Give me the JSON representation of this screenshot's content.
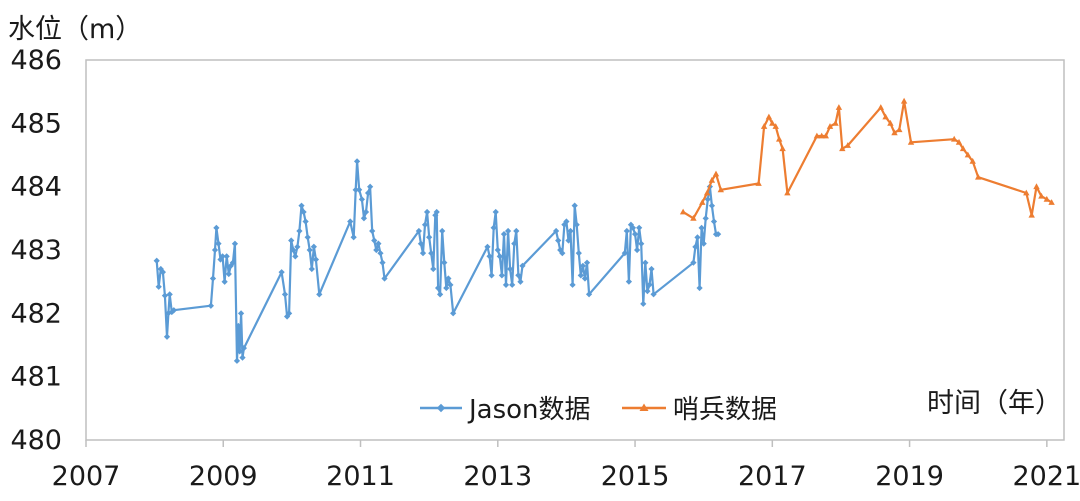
{
  "chart_data": {
    "type": "line",
    "title": "",
    "ylabel": "水位（m）",
    "xlabel": "时间（年）",
    "xlim": [
      2007,
      2021.25
    ],
    "ylim": [
      480,
      486
    ],
    "xticks": [
      2007,
      2009,
      2011,
      2013,
      2015,
      2017,
      2019,
      2021
    ],
    "yticks": [
      480,
      481,
      482,
      483,
      484,
      485,
      486
    ],
    "grid": false,
    "legend_position": "bottom-center",
    "series": [
      {
        "name": "Jason数据",
        "color": "#5b9bd5",
        "marker": "diamond",
        "points": [
          [
            2008.03,
            482.83
          ],
          [
            2008.06,
            482.42
          ],
          [
            2008.09,
            482.7
          ],
          [
            2008.12,
            482.65
          ],
          [
            2008.15,
            482.28
          ],
          [
            2008.18,
            481.63
          ],
          [
            2008.2,
            482.0
          ],
          [
            2008.22,
            482.3
          ],
          [
            2008.25,
            482.02
          ],
          [
            2008.28,
            482.05
          ],
          [
            2008.82,
            482.12
          ],
          [
            2008.85,
            482.55
          ],
          [
            2008.88,
            483.0
          ],
          [
            2008.9,
            483.35
          ],
          [
            2008.93,
            483.1
          ],
          [
            2008.96,
            482.85
          ],
          [
            2008.99,
            482.9
          ],
          [
            2009.02,
            482.5
          ],
          [
            2009.05,
            482.9
          ],
          [
            2009.08,
            482.62
          ],
          [
            2009.11,
            482.75
          ],
          [
            2009.14,
            482.8
          ],
          [
            2009.17,
            483.1
          ],
          [
            2009.2,
            481.25
          ],
          [
            2009.22,
            481.8
          ],
          [
            2009.24,
            481.4
          ],
          [
            2009.26,
            482.0
          ],
          [
            2009.28,
            481.3
          ],
          [
            2009.3,
            481.45
          ],
          [
            2009.85,
            482.65
          ],
          [
            2009.9,
            482.3
          ],
          [
            2009.93,
            481.95
          ],
          [
            2009.96,
            482.0
          ],
          [
            2009.99,
            483.15
          ],
          [
            2010.02,
            483.0
          ],
          [
            2010.05,
            482.9
          ],
          [
            2010.08,
            483.05
          ],
          [
            2010.11,
            483.3
          ],
          [
            2010.14,
            483.7
          ],
          [
            2010.17,
            483.6
          ],
          [
            2010.2,
            483.45
          ],
          [
            2010.23,
            483.2
          ],
          [
            2010.26,
            483.0
          ],
          [
            2010.29,
            482.7
          ],
          [
            2010.32,
            483.05
          ],
          [
            2010.35,
            482.85
          ],
          [
            2010.4,
            482.3
          ],
          [
            2010.85,
            483.45
          ],
          [
            2010.9,
            483.2
          ],
          [
            2010.93,
            483.95
          ],
          [
            2010.95,
            484.4
          ],
          [
            2010.98,
            483.95
          ],
          [
            2011.02,
            483.8
          ],
          [
            2011.05,
            483.5
          ],
          [
            2011.08,
            483.6
          ],
          [
            2011.11,
            483.9
          ],
          [
            2011.14,
            484.0
          ],
          [
            2011.17,
            483.3
          ],
          [
            2011.2,
            483.15
          ],
          [
            2011.23,
            483.0
          ],
          [
            2011.26,
            483.1
          ],
          [
            2011.29,
            482.95
          ],
          [
            2011.32,
            482.8
          ],
          [
            2011.35,
            482.55
          ],
          [
            2011.85,
            483.3
          ],
          [
            2011.88,
            483.1
          ],
          [
            2011.91,
            482.95
          ],
          [
            2011.94,
            483.4
          ],
          [
            2011.97,
            483.6
          ],
          [
            2012.0,
            483.2
          ],
          [
            2012.03,
            482.95
          ],
          [
            2012.06,
            482.7
          ],
          [
            2012.09,
            483.55
          ],
          [
            2012.11,
            483.6
          ],
          [
            2012.13,
            482.4
          ],
          [
            2012.16,
            482.3
          ],
          [
            2012.19,
            483.3
          ],
          [
            2012.22,
            482.8
          ],
          [
            2012.25,
            482.4
          ],
          [
            2012.28,
            482.55
          ],
          [
            2012.31,
            482.45
          ],
          [
            2012.35,
            482.0
          ],
          [
            2012.85,
            483.05
          ],
          [
            2012.88,
            482.9
          ],
          [
            2012.91,
            482.6
          ],
          [
            2012.94,
            483.35
          ],
          [
            2012.97,
            483.6
          ],
          [
            2013.0,
            483.0
          ],
          [
            2013.03,
            482.9
          ],
          [
            2013.06,
            482.6
          ],
          [
            2013.09,
            483.25
          ],
          [
            2013.12,
            482.45
          ],
          [
            2013.15,
            483.3
          ],
          [
            2013.18,
            482.7
          ],
          [
            2013.21,
            482.45
          ],
          [
            2013.24,
            483.1
          ],
          [
            2013.27,
            483.3
          ],
          [
            2013.3,
            482.6
          ],
          [
            2013.33,
            482.5
          ],
          [
            2013.36,
            482.75
          ],
          [
            2013.85,
            483.3
          ],
          [
            2013.88,
            483.15
          ],
          [
            2013.91,
            483.0
          ],
          [
            2013.94,
            482.95
          ],
          [
            2013.97,
            483.4
          ],
          [
            2014.0,
            483.45
          ],
          [
            2014.03,
            483.15
          ],
          [
            2014.06,
            483.3
          ],
          [
            2014.09,
            482.45
          ],
          [
            2014.12,
            483.7
          ],
          [
            2014.15,
            483.4
          ],
          [
            2014.18,
            482.95
          ],
          [
            2014.21,
            482.6
          ],
          [
            2014.24,
            482.75
          ],
          [
            2014.27,
            482.55
          ],
          [
            2014.3,
            482.8
          ],
          [
            2014.33,
            482.3
          ],
          [
            2014.85,
            482.95
          ],
          [
            2014.88,
            483.3
          ],
          [
            2014.91,
            482.5
          ],
          [
            2014.94,
            483.4
          ],
          [
            2014.97,
            483.35
          ],
          [
            2015.0,
            483.25
          ],
          [
            2015.03,
            483.0
          ],
          [
            2015.06,
            483.35
          ],
          [
            2015.09,
            483.1
          ],
          [
            2015.12,
            482.15
          ],
          [
            2015.15,
            482.8
          ],
          [
            2015.18,
            482.35
          ],
          [
            2015.21,
            482.45
          ],
          [
            2015.24,
            482.7
          ],
          [
            2015.27,
            482.3
          ],
          [
            2015.85,
            482.8
          ],
          [
            2015.88,
            483.05
          ],
          [
            2015.91,
            483.2
          ],
          [
            2015.94,
            482.4
          ],
          [
            2015.97,
            483.35
          ],
          [
            2016.0,
            483.1
          ],
          [
            2016.03,
            483.5
          ],
          [
            2016.06,
            483.8
          ],
          [
            2016.09,
            484.0
          ],
          [
            2016.12,
            483.7
          ],
          [
            2016.15,
            483.45
          ],
          [
            2016.18,
            483.25
          ],
          [
            2016.21,
            483.25
          ]
        ]
      },
      {
        "name": "哨兵数据",
        "color": "#ed7d31",
        "marker": "triangle",
        "points": [
          [
            2015.7,
            483.6
          ],
          [
            2015.85,
            483.5
          ],
          [
            2015.98,
            483.75
          ],
          [
            2016.05,
            483.9
          ],
          [
            2016.12,
            484.1
          ],
          [
            2016.18,
            484.2
          ],
          [
            2016.25,
            483.95
          ],
          [
            2016.8,
            484.05
          ],
          [
            2016.88,
            484.95
          ],
          [
            2016.95,
            485.1
          ],
          [
            2017.0,
            485.0
          ],
          [
            2017.05,
            484.95
          ],
          [
            2017.1,
            484.75
          ],
          [
            2017.15,
            484.6
          ],
          [
            2017.22,
            483.9
          ],
          [
            2017.65,
            484.8
          ],
          [
            2017.72,
            484.8
          ],
          [
            2017.78,
            484.8
          ],
          [
            2017.84,
            484.95
          ],
          [
            2017.92,
            485.0
          ],
          [
            2017.97,
            485.25
          ],
          [
            2018.02,
            484.6
          ],
          [
            2018.1,
            484.65
          ],
          [
            2018.58,
            485.25
          ],
          [
            2018.65,
            485.1
          ],
          [
            2018.72,
            485.0
          ],
          [
            2018.78,
            484.85
          ],
          [
            2018.85,
            484.9
          ],
          [
            2018.92,
            485.35
          ],
          [
            2019.02,
            484.7
          ],
          [
            2019.65,
            484.75
          ],
          [
            2019.72,
            484.7
          ],
          [
            2019.78,
            484.6
          ],
          [
            2019.85,
            484.5
          ],
          [
            2019.92,
            484.4
          ],
          [
            2020.0,
            484.15
          ],
          [
            2020.7,
            483.9
          ],
          [
            2020.78,
            483.55
          ],
          [
            2020.85,
            484.0
          ],
          [
            2020.92,
            483.85
          ],
          [
            2021.0,
            483.8
          ],
          [
            2021.07,
            483.75
          ]
        ]
      }
    ]
  }
}
